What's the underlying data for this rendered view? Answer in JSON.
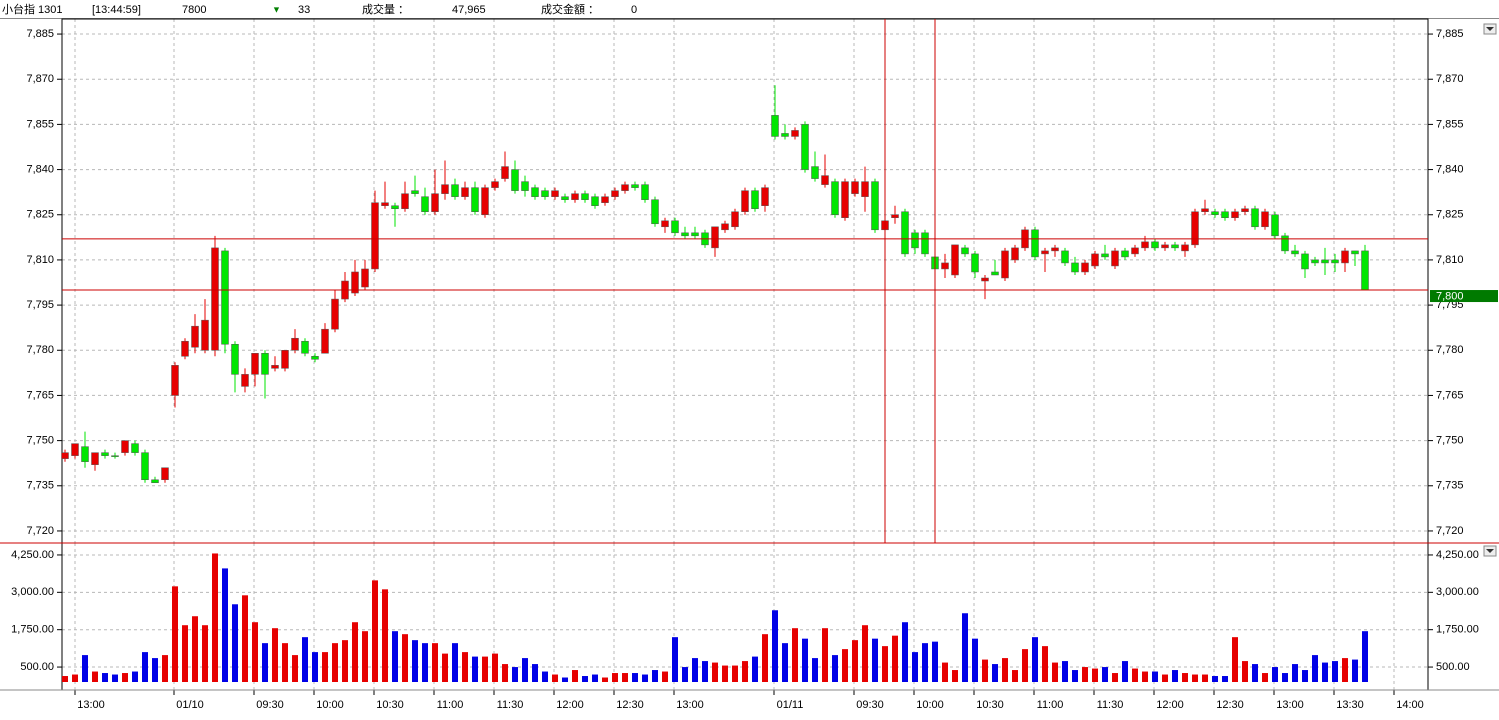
{
  "header": {
    "symbol": "小台指 1301",
    "time": "[13:44:59]",
    "price": "7800",
    "arrow": "▼",
    "change": "33",
    "volume_label": "成交量 ：",
    "volume": "47,965",
    "amount_label": "成交金額 ：",
    "amount": "0"
  },
  "chart_data": {
    "type": "candlestick",
    "ohlc": [
      [
        7744,
        7747,
        7743,
        7746
      ],
      [
        7745,
        7749,
        7744,
        7749
      ],
      [
        7748,
        7753,
        7741,
        7743
      ],
      [
        7742,
        7746,
        7740,
        7746
      ],
      [
        7746,
        7747,
        7744,
        7745
      ],
      [
        7745,
        7746,
        7744,
        7745
      ],
      [
        7746,
        7750,
        7745,
        7750
      ],
      [
        7749,
        7750,
        7745,
        7746
      ],
      [
        7746,
        7747,
        7736,
        7737
      ],
      [
        7737,
        7738,
        7736,
        7736
      ],
      [
        7737,
        7741,
        7736,
        7741
      ],
      [
        7765,
        7776,
        7761,
        7775
      ],
      [
        7778,
        7784,
        7777,
        7783
      ],
      [
        7781,
        7792,
        7779,
        7788
      ],
      [
        7780,
        7797,
        7779,
        7790
      ],
      [
        7780,
        7818,
        7778,
        7814
      ],
      [
        7813,
        7814,
        7779,
        7782
      ],
      [
        7782,
        7783,
        7766,
        7772
      ],
      [
        7768,
        7774,
        7766,
        7772
      ],
      [
        7772,
        7779,
        7768,
        7779
      ],
      [
        7779,
        7780,
        7764,
        7772
      ],
      [
        7774,
        7778,
        7773,
        7775
      ],
      [
        7774,
        7780,
        7773,
        7780
      ],
      [
        7780,
        7787,
        7779,
        7784
      ],
      [
        7783,
        7784,
        7778,
        7779
      ],
      [
        7778,
        7779,
        7776,
        7777
      ],
      [
        7779,
        7789,
        7779,
        7787
      ],
      [
        7787,
        7800,
        7786,
        7797
      ],
      [
        7797,
        7806,
        7796,
        7803
      ],
      [
        7799,
        7810,
        7798,
        7806
      ],
      [
        7801,
        7810,
        7800,
        7807
      ],
      [
        7807,
        7833,
        7806,
        7829
      ],
      [
        7828,
        7836,
        7827,
        7829
      ],
      [
        7828,
        7829,
        7821,
        7827
      ],
      [
        7827,
        7836,
        7826,
        7832
      ],
      [
        7833,
        7838,
        7831,
        7832
      ],
      [
        7831,
        7834,
        7825,
        7826
      ],
      [
        7826,
        7840,
        7825,
        7832
      ],
      [
        7832,
        7843,
        7830,
        7835
      ],
      [
        7835,
        7837,
        7830,
        7831
      ],
      [
        7831,
        7836,
        7830,
        7834
      ],
      [
        7834,
        7836,
        7825,
        7826
      ],
      [
        7825,
        7835,
        7824,
        7834
      ],
      [
        7834,
        7837,
        7833,
        7836
      ],
      [
        7837,
        7846,
        7836,
        7841
      ],
      [
        7840,
        7843,
        7832,
        7833
      ],
      [
        7836,
        7838,
        7831,
        7833
      ],
      [
        7834,
        7835,
        7830,
        7831
      ],
      [
        7833,
        7834,
        7830,
        7831
      ],
      [
        7831,
        7834,
        7830,
        7833
      ],
      [
        7831,
        7832,
        7829,
        7830
      ],
      [
        7830,
        7833,
        7829,
        7832
      ],
      [
        7832,
        7833,
        7829,
        7830
      ],
      [
        7831,
        7832,
        7827,
        7828
      ],
      [
        7829,
        7832,
        7828,
        7831
      ],
      [
        7831,
        7834,
        7830,
        7833
      ],
      [
        7833,
        7836,
        7832,
        7835
      ],
      [
        7835,
        7836,
        7833,
        7834
      ],
      [
        7835,
        7836,
        7829,
        7830
      ],
      [
        7830,
        7831,
        7821,
        7822
      ],
      [
        7821,
        7824,
        7819,
        7823
      ],
      [
        7823,
        7824,
        7818,
        7819
      ],
      [
        7819,
        7821,
        7817,
        7818
      ],
      [
        7819,
        7821,
        7817,
        7818
      ],
      [
        7819,
        7820,
        7814,
        7815
      ],
      [
        7814,
        7821,
        7811,
        7821
      ],
      [
        7820,
        7823,
        7819,
        7822
      ],
      [
        7821,
        7827,
        7820,
        7826
      ],
      [
        7826,
        7834,
        7825,
        7833
      ],
      [
        7833,
        7834,
        7826,
        7827
      ],
      [
        7828,
        7835,
        7826,
        7834
      ],
      [
        7858,
        7868,
        7850,
        7851
      ],
      [
        7852,
        7855,
        7850,
        7851
      ],
      [
        7851,
        7854,
        7850,
        7853
      ],
      [
        7855,
        7856,
        7839,
        7840
      ],
      [
        7841,
        7846,
        7836,
        7837
      ],
      [
        7835,
        7845,
        7834,
        7838
      ],
      [
        7836,
        7837,
        7824,
        7825
      ],
      [
        7824,
        7837,
        7823,
        7836
      ],
      [
        7832,
        7837,
        7831,
        7836
      ],
      [
        7831,
        7841,
        7826,
        7836
      ],
      [
        7836,
        7837,
        7819,
        7820
      ],
      [
        7820,
        7824,
        7818,
        7823
      ],
      [
        7824,
        7828,
        7822,
        7825
      ],
      [
        7826,
        7827,
        7811,
        7812
      ],
      [
        7819,
        7820,
        7812,
        7814
      ],
      [
        7819,
        7820,
        7811,
        7812
      ],
      [
        7811,
        7812,
        7805,
        7807
      ],
      [
        7807,
        7812,
        7804,
        7809
      ],
      [
        7805,
        7815,
        7804,
        7815
      ],
      [
        7814,
        7815,
        7811,
        7812
      ],
      [
        7812,
        7813,
        7804,
        7806
      ],
      [
        7803,
        7805,
        7797,
        7804
      ],
      [
        7806,
        7810,
        7805,
        7805
      ],
      [
        7804,
        7814,
        7803,
        7813
      ],
      [
        7810,
        7815,
        7809,
        7814
      ],
      [
        7814,
        7821,
        7813,
        7820
      ],
      [
        7820,
        7821,
        7810,
        7811
      ],
      [
        7812,
        7814,
        7806,
        7813
      ],
      [
        7813,
        7815,
        7811,
        7814
      ],
      [
        7813,
        7814,
        7808,
        7809
      ],
      [
        7809,
        7811,
        7805,
        7806
      ],
      [
        7806,
        7810,
        7805,
        7809
      ],
      [
        7808,
        7813,
        7807,
        7812
      ],
      [
        7812,
        7815,
        7810,
        7811
      ],
      [
        7808,
        7814,
        7807,
        7813
      ],
      [
        7813,
        7814,
        7810,
        7811
      ],
      [
        7812,
        7815,
        7811,
        7814
      ],
      [
        7814,
        7818,
        7813,
        7816
      ],
      [
        7816,
        7817,
        7813,
        7814
      ],
      [
        7814,
        7816,
        7813,
        7815
      ],
      [
        7815,
        7816,
        7813,
        7814
      ],
      [
        7813,
        7816,
        7811,
        7815
      ],
      [
        7815,
        7827,
        7814,
        7826
      ],
      [
        7826,
        7830,
        7825,
        7827
      ],
      [
        7826,
        7827,
        7824,
        7825
      ],
      [
        7826,
        7827,
        7823,
        7824
      ],
      [
        7824,
        7827,
        7823,
        7826
      ],
      [
        7826,
        7828,
        7825,
        7827
      ],
      [
        7827,
        7828,
        7820,
        7821
      ],
      [
        7821,
        7827,
        7820,
        7826
      ],
      [
        7825,
        7826,
        7817,
        7818
      ],
      [
        7818,
        7819,
        7812,
        7813
      ],
      [
        7813,
        7815,
        7811,
        7812
      ],
      [
        7812,
        7813,
        7804,
        7807
      ],
      [
        7810,
        7811,
        7808,
        7809
      ],
      [
        7810,
        7814,
        7805,
        7809
      ],
      [
        7810,
        7812,
        7806,
        7809
      ],
      [
        7809,
        7814,
        7806,
        7813
      ],
      [
        7813,
        7813,
        7808,
        7812
      ],
      [
        7813,
        7815,
        7800,
        7800
      ]
    ],
    "volume": [
      200,
      250,
      900,
      350,
      300,
      250,
      300,
      350,
      1000,
      800,
      900,
      3200,
      1900,
      2200,
      1900,
      4300,
      3800,
      2600,
      2900,
      2000,
      1300,
      1800,
      1300,
      900,
      1500,
      1000,
      1000,
      1300,
      1400,
      2000,
      1700,
      3400,
      3100,
      1700,
      1600,
      1400,
      1300,
      1300,
      950,
      1300,
      1000,
      850,
      850,
      950,
      600,
      500,
      800,
      600,
      350,
      250,
      150,
      400,
      200,
      250,
      150,
      300,
      300,
      300,
      250,
      400,
      350,
      1500,
      500,
      800,
      700,
      650,
      550,
      550,
      700,
      850,
      1600,
      2400,
      1300,
      1800,
      1450,
      800,
      1800,
      900,
      1100,
      1400,
      1900,
      1450,
      1200,
      1550,
      2000,
      1000,
      1300,
      1350,
      650,
      400,
      2300,
      1450,
      750,
      600,
      800,
      400,
      1100,
      1500,
      1200,
      650,
      700,
      400,
      500,
      450,
      500,
      300,
      700,
      450,
      350,
      350,
      250,
      400,
      300,
      250,
      250,
      200,
      200,
      1500,
      700,
      600,
      300,
      500,
      300,
      600,
      400,
      900,
      650,
      700,
      800,
      750,
      1700
    ],
    "up_color": "#e60000",
    "down_color": "#00e600",
    "volume_up_color": "#e60000",
    "volume_down_color": "#0000e6",
    "ylim": [
      7716,
      7890
    ],
    "yticks": [
      {
        "value": 7720,
        "label": "7,720"
      },
      {
        "value": 7735,
        "label": "7,735"
      },
      {
        "value": 7750,
        "label": "7,750"
      },
      {
        "value": 7765,
        "label": "7,765"
      },
      {
        "value": 7780,
        "label": "7,780"
      },
      {
        "value": 7795,
        "label": "7,795"
      },
      {
        "value": 7810,
        "label": "7,810"
      },
      {
        "value": 7825,
        "label": "7,825"
      },
      {
        "value": 7840,
        "label": "7,840"
      },
      {
        "value": 7855,
        "label": "7,855"
      },
      {
        "value": 7870,
        "label": "7,870"
      },
      {
        "value": 7885,
        "label": "7,885"
      }
    ],
    "vylim": [
      0,
      4650
    ],
    "vyticks": [
      {
        "value": 500,
        "label": "500.00"
      },
      {
        "value": 1750,
        "label": "1,750.00"
      },
      {
        "value": 3000,
        "label": "3,000.00"
      },
      {
        "value": 4250,
        "label": "4,250.00"
      }
    ],
    "xlim": [
      -0.3,
      136.3
    ],
    "xticks": [
      {
        "value": 2.6,
        "label": "13:00"
      },
      {
        "value": 12.5,
        "label": "01/10"
      },
      {
        "value": 20.5,
        "label": "09:30"
      },
      {
        "value": 26.5,
        "label": "10:00"
      },
      {
        "value": 32.5,
        "label": "10:30"
      },
      {
        "value": 38.5,
        "label": "11:00"
      },
      {
        "value": 44.5,
        "label": "11:30"
      },
      {
        "value": 50.5,
        "label": "12:00"
      },
      {
        "value": 56.5,
        "label": "12:30"
      },
      {
        "value": 62.5,
        "label": "13:00"
      },
      {
        "value": 72.5,
        "label": "01/11"
      },
      {
        "value": 80.5,
        "label": "09:30"
      },
      {
        "value": 86.5,
        "label": "10:00"
      },
      {
        "value": 92.5,
        "label": "10:30"
      },
      {
        "value": 98.5,
        "label": "11:00"
      },
      {
        "value": 104.5,
        "label": "11:30"
      },
      {
        "value": 110.5,
        "label": "12:00"
      },
      {
        "value": 116.5,
        "label": "12:30"
      },
      {
        "value": 122.5,
        "label": "13:00"
      },
      {
        "value": 128.5,
        "label": "13:30"
      },
      {
        "value": 134.5,
        "label": "14:00"
      }
    ],
    "grid": true,
    "crosshair": {
      "prices": [
        7817,
        7800
      ],
      "x": [
        82,
        87
      ],
      "color": "#cc0000"
    },
    "last_price": {
      "value": 7800,
      "label": "7,800"
    }
  }
}
